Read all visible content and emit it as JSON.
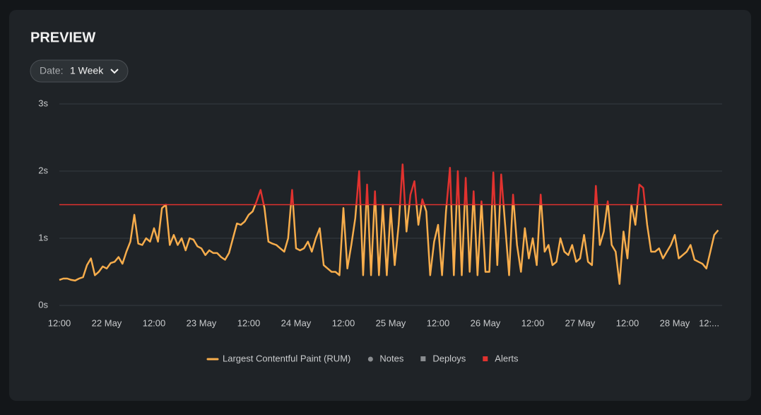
{
  "header": {
    "title": "PREVIEW",
    "filter": {
      "label": "Date:",
      "value": "1 Week"
    }
  },
  "chart_data": {
    "type": "line",
    "x": [
      0,
      1,
      2,
      3,
      4,
      5,
      6,
      7,
      8,
      9,
      10,
      11,
      12,
      13,
      14,
      15,
      16,
      17,
      18,
      19,
      20,
      21,
      22,
      23,
      24,
      25,
      26,
      27,
      28,
      29,
      30,
      31,
      32,
      33,
      34,
      35,
      36,
      37,
      38,
      39,
      40,
      41,
      42,
      43,
      44,
      45,
      46,
      47,
      48,
      49,
      50,
      51,
      52,
      53,
      54,
      55,
      56,
      57,
      58,
      59,
      60,
      61,
      62,
      63,
      64,
      65,
      66,
      67,
      68,
      69,
      70,
      71,
      72,
      73,
      74,
      75,
      76,
      77,
      78,
      79,
      80,
      81,
      82,
      83,
      84,
      85,
      86,
      87,
      88,
      89,
      90,
      91,
      92,
      93,
      94,
      95,
      96,
      97,
      98,
      99,
      100,
      101,
      102,
      103,
      104,
      105,
      106,
      107,
      108,
      109,
      110,
      111,
      112,
      113,
      114,
      115,
      116,
      117,
      118,
      119,
      120,
      121,
      122,
      123,
      124,
      125,
      126,
      127,
      128,
      129,
      130,
      131,
      132,
      133,
      134,
      135,
      136,
      137,
      138,
      139,
      140,
      141,
      142,
      143,
      144,
      145,
      146,
      147,
      148,
      149,
      150,
      151,
      152,
      153,
      154,
      155,
      156,
      157,
      158,
      159,
      160,
      161,
      162,
      163,
      164,
      165,
      166,
      167
    ],
    "series": [
      {
        "name": "Largest Contentful Paint (RUM)",
        "color": "#f7ad4c",
        "values": [
          0.38,
          0.4,
          0.4,
          0.38,
          0.37,
          0.4,
          0.42,
          0.6,
          0.7,
          0.45,
          0.5,
          0.58,
          0.55,
          0.63,
          0.65,
          0.72,
          0.62,
          0.8,
          0.95,
          1.35,
          0.92,
          0.9,
          1.0,
          0.95,
          1.15,
          0.95,
          1.45,
          1.5,
          0.9,
          1.05,
          0.9,
          1.0,
          0.82,
          1.0,
          0.98,
          0.88,
          0.85,
          0.75,
          0.82,
          0.78,
          0.78,
          0.72,
          0.68,
          0.78,
          1.0,
          1.22,
          1.2,
          1.25,
          1.35,
          1.4,
          1.55,
          1.72,
          1.45,
          0.95,
          0.92,
          0.9,
          0.85,
          0.8,
          1.0,
          1.72,
          0.85,
          0.82,
          0.85,
          0.95,
          0.8,
          1.0,
          1.15,
          0.6,
          0.55,
          0.5,
          0.5,
          0.45,
          1.45,
          0.55,
          0.9,
          1.3,
          2.0,
          0.45,
          1.8,
          0.45,
          1.7,
          0.45,
          1.5,
          0.45,
          1.45,
          0.6,
          1.2,
          2.1,
          1.1,
          1.65,
          1.85,
          1.2,
          1.58,
          1.4,
          0.45,
          0.95,
          1.2,
          0.45,
          1.4,
          2.05,
          0.45,
          2.0,
          0.45,
          1.9,
          0.5,
          1.7,
          0.45,
          1.55,
          0.5,
          0.5,
          1.98,
          0.6,
          1.95,
          1.2,
          0.45,
          1.65,
          0.9,
          0.5,
          1.15,
          0.7,
          1.0,
          0.6,
          1.65,
          0.8,
          0.9,
          0.6,
          0.65,
          1.0,
          0.8,
          0.75,
          0.9,
          0.65,
          0.7,
          1.05,
          0.65,
          0.6,
          1.78,
          0.9,
          1.1,
          1.55,
          0.9,
          0.8,
          0.32,
          1.1,
          0.7,
          1.5,
          1.2,
          1.8,
          1.75,
          1.2,
          0.8,
          0.8,
          0.85,
          0.7,
          0.8,
          0.9,
          1.05,
          0.7,
          0.75,
          0.8,
          0.9,
          0.68,
          0.65,
          0.62,
          0.55,
          0.8,
          1.05,
          1.12
        ]
      }
    ],
    "threshold": 1.5,
    "threshold_color": "#e0322f",
    "xlim": [
      0,
      168
    ],
    "xticks": [
      {
        "value": 0,
        "label": "12:00"
      },
      {
        "value": 12,
        "label": "22 May"
      },
      {
        "value": 24,
        "label": "12:00"
      },
      {
        "value": 36,
        "label": "23 May"
      },
      {
        "value": 48,
        "label": "12:00"
      },
      {
        "value": 60,
        "label": "24 May"
      },
      {
        "value": 72,
        "label": "12:00"
      },
      {
        "value": 84,
        "label": "25 May"
      },
      {
        "value": 96,
        "label": "12:00"
      },
      {
        "value": 108,
        "label": "26 May"
      },
      {
        "value": 120,
        "label": "12:00"
      },
      {
        "value": 132,
        "label": "27 May"
      },
      {
        "value": 144,
        "label": "12:00"
      },
      {
        "value": 156,
        "label": "28 May"
      },
      {
        "value": 168,
        "label": "12:..."
      }
    ],
    "ylim": [
      0,
      3
    ],
    "yticks": [
      {
        "value": 0,
        "label": "0s"
      },
      {
        "value": 1,
        "label": "1s"
      },
      {
        "value": 2,
        "label": "2s"
      },
      {
        "value": 3,
        "label": "3s"
      }
    ],
    "grid": true,
    "legend_extra": [
      {
        "name": "Notes",
        "color": "#8a8d90",
        "shape": "circle"
      },
      {
        "name": "Deploys",
        "color": "#8a8d90",
        "shape": "square"
      },
      {
        "name": "Alerts",
        "color": "#e0322f",
        "shape": "square"
      }
    ]
  }
}
